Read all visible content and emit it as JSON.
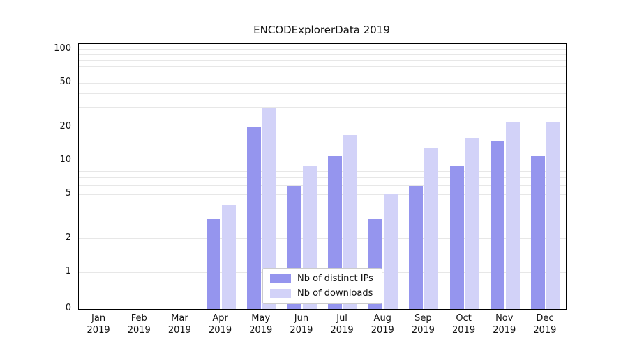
{
  "chart_data": {
    "type": "bar",
    "title": "ENCODExplorerData 2019",
    "categories": [
      "Jan",
      "Feb",
      "Mar",
      "Apr",
      "May",
      "Jun",
      "Jul",
      "Aug",
      "Sep",
      "Oct",
      "Nov",
      "Dec"
    ],
    "year": "2019",
    "series": [
      {
        "name": "Nb of distinct IPs",
        "color": "#9595ee",
        "values": [
          0,
          0,
          0,
          3,
          20,
          6,
          11,
          3,
          6,
          9,
          15,
          11
        ]
      },
      {
        "name": "Nb of downloads",
        "color": "#d2d2f8",
        "values": [
          0,
          0,
          0,
          4,
          30,
          9,
          17,
          5,
          13,
          16,
          22,
          22
        ]
      }
    ],
    "yticks": [
      0,
      1,
      2,
      5,
      10,
      20,
      50,
      100
    ],
    "gridlines": [
      1,
      2,
      3,
      4,
      5,
      6,
      7,
      8,
      9,
      10,
      20,
      30,
      40,
      50,
      60,
      70,
      80,
      90,
      100
    ],
    "ylim": [
      0,
      112
    ],
    "scale": "symlog",
    "grid": true,
    "legend_position": "lower center"
  }
}
